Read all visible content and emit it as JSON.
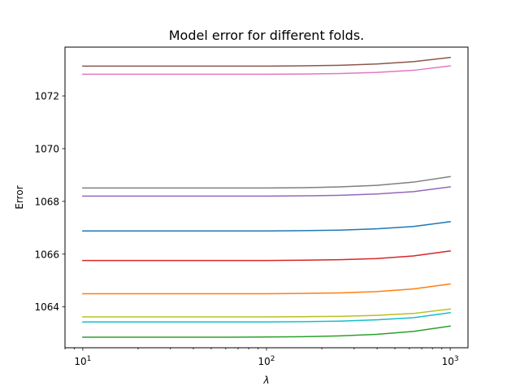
{
  "chart_data": {
    "type": "line",
    "title": "Model error for different folds.",
    "xlabel": "λ",
    "ylabel": "Error",
    "xscale": "log",
    "xlim": [
      8.0,
      1250.0
    ],
    "ylim": [
      1062.45,
      1073.85
    ],
    "grid": false,
    "x": [
      10,
      15.85,
      25.12,
      39.81,
      63.1,
      100,
      158.5,
      251.2,
      398.1,
      631,
      1000
    ],
    "xticks": [
      {
        "value": 10,
        "base": "10",
        "exp": "1"
      },
      {
        "value": 100,
        "base": "10",
        "exp": "2"
      },
      {
        "value": 1000,
        "base": "10",
        "exp": "3"
      }
    ],
    "yticks": [
      {
        "value": 1064,
        "label": "1064"
      },
      {
        "value": 1066,
        "label": "1066"
      },
      {
        "value": 1068,
        "label": "1068"
      },
      {
        "value": 1070,
        "label": "1070"
      },
      {
        "value": 1072,
        "label": "1072"
      }
    ],
    "series": [
      {
        "color": "#1f77b4",
        "values": [
          1066.88,
          1066.88,
          1066.88,
          1066.88,
          1066.88,
          1066.88,
          1066.89,
          1066.91,
          1066.96,
          1067.05,
          1067.23
        ]
      },
      {
        "color": "#ff7f0e",
        "values": [
          1064.5,
          1064.5,
          1064.5,
          1064.5,
          1064.5,
          1064.5,
          1064.51,
          1064.53,
          1064.58,
          1064.68,
          1064.87
        ]
      },
      {
        "color": "#2ca02c",
        "values": [
          1062.85,
          1062.85,
          1062.85,
          1062.85,
          1062.85,
          1062.86,
          1062.87,
          1062.9,
          1062.96,
          1063.07,
          1063.27
        ]
      },
      {
        "color": "#d62728",
        "values": [
          1065.76,
          1065.76,
          1065.76,
          1065.76,
          1065.76,
          1065.76,
          1065.77,
          1065.79,
          1065.83,
          1065.93,
          1066.12
        ]
      },
      {
        "color": "#9467bd",
        "values": [
          1068.2,
          1068.2,
          1068.2,
          1068.2,
          1068.2,
          1068.2,
          1068.21,
          1068.23,
          1068.28,
          1068.37,
          1068.55
        ]
      },
      {
        "color": "#8c564b",
        "values": [
          1073.13,
          1073.13,
          1073.13,
          1073.13,
          1073.13,
          1073.13,
          1073.14,
          1073.16,
          1073.21,
          1073.3,
          1073.46
        ]
      },
      {
        "color": "#e377c2",
        "values": [
          1072.82,
          1072.82,
          1072.82,
          1072.82,
          1072.82,
          1072.82,
          1072.83,
          1072.85,
          1072.89,
          1072.97,
          1073.14
        ]
      },
      {
        "color": "#7f7f7f",
        "values": [
          1068.51,
          1068.51,
          1068.51,
          1068.51,
          1068.51,
          1068.51,
          1068.52,
          1068.55,
          1068.61,
          1068.73,
          1068.94
        ]
      },
      {
        "color": "#bcbd22",
        "values": [
          1063.62,
          1063.62,
          1063.62,
          1063.62,
          1063.62,
          1063.62,
          1063.63,
          1063.64,
          1063.68,
          1063.75,
          1063.92
        ]
      },
      {
        "color": "#17becf",
        "values": [
          1063.43,
          1063.43,
          1063.43,
          1063.43,
          1063.43,
          1063.43,
          1063.44,
          1063.46,
          1063.51,
          1063.59,
          1063.78
        ]
      }
    ]
  }
}
